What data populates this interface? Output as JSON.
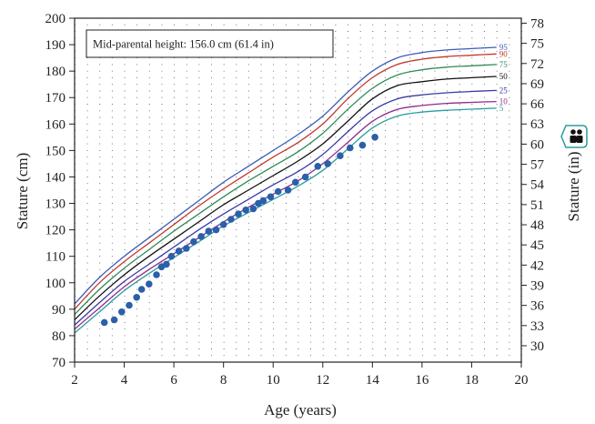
{
  "chart_data": {
    "type": "line",
    "title": "",
    "annotation": "Mid-parental height: 156.0 cm (61.4 in)",
    "xlabel": "Age (years)",
    "ylabel": "Stature (cm)",
    "y2label": "Stature (in)",
    "xlim": [
      2,
      20
    ],
    "ylim": [
      70,
      200
    ],
    "y2lim_in": [
      27.56,
      78.74
    ],
    "x_ticks": [
      2,
      4,
      6,
      8,
      10,
      12,
      14,
      16,
      18,
      20
    ],
    "y_ticks": [
      70,
      80,
      90,
      100,
      110,
      120,
      130,
      140,
      150,
      160,
      170,
      180,
      190,
      200
    ],
    "y2_ticks": [
      30,
      33,
      36,
      39,
      42,
      45,
      48,
      51,
      54,
      57,
      60,
      63,
      66,
      69,
      72,
      75,
      78
    ],
    "grid": "dotted",
    "x": [
      2,
      3,
      4,
      5,
      6,
      7,
      8,
      9,
      10,
      11,
      12,
      13,
      14,
      15,
      16,
      17,
      18,
      19
    ],
    "series": [
      {
        "name": "95",
        "color": "#3a5cb8",
        "values": [
          92,
          102,
          110,
          117,
          124,
          131,
          138,
          144,
          150,
          156,
          163,
          172,
          180,
          185,
          187,
          188,
          188.5,
          189
        ]
      },
      {
        "name": "90",
        "color": "#c0392b",
        "values": [
          90,
          100,
          108,
          115,
          122,
          129,
          135.5,
          141.5,
          147.5,
          153,
          160,
          169.5,
          177.5,
          182.5,
          184.5,
          185.5,
          186,
          186.5
        ]
      },
      {
        "name": "75",
        "color": "#2e8b57",
        "values": [
          88,
          97.5,
          105.5,
          112.5,
          119.5,
          126,
          132.5,
          138.5,
          144,
          149.5,
          156.5,
          165.5,
          173.5,
          178.5,
          180.5,
          181.5,
          182,
          182.5
        ]
      },
      {
        "name": "50",
        "color": "#111111",
        "values": [
          86,
          95,
          103,
          110,
          116.5,
          123,
          129.5,
          135,
          140.5,
          146,
          152.5,
          161,
          169.5,
          174.5,
          176,
          177,
          177.5,
          178
        ]
      },
      {
        "name": "25",
        "color": "#3a3aa8",
        "values": [
          84,
          92.5,
          100.5,
          107,
          113.5,
          120,
          126,
          131.5,
          137,
          142,
          148.5,
          157,
          165,
          169.5,
          171,
          171.8,
          172.3,
          172.7
        ]
      },
      {
        "name": "10",
        "color": "#8e2b8e",
        "values": [
          82.5,
          90.5,
          98.5,
          105,
          111,
          117,
          123,
          128.5,
          133.5,
          138.5,
          145,
          153,
          161,
          165.5,
          167,
          167.8,
          168.2,
          168.5
        ]
      },
      {
        "name": "5",
        "color": "#2a9d9d",
        "values": [
          81,
          89,
          97,
          103.5,
          109.5,
          115.5,
          121.5,
          126.5,
          131.5,
          136.5,
          142.5,
          150.5,
          158.5,
          163,
          164.5,
          165.2,
          165.6,
          166
        ]
      }
    ],
    "points": {
      "color": "#2b5faa",
      "x": [
        3.2,
        3.6,
        3.9,
        4.2,
        4.5,
        4.7,
        5.0,
        5.3,
        5.5,
        5.7,
        5.9,
        6.2,
        6.5,
        6.8,
        7.1,
        7.4,
        7.7,
        8.0,
        8.3,
        8.6,
        8.9,
        9.2,
        9.4,
        9.6,
        9.9,
        10.2,
        10.6,
        10.9,
        11.3,
        11.8,
        12.2,
        12.7,
        13.1,
        13.6,
        14.1
      ],
      "y": [
        85,
        86,
        89,
        91.5,
        94.5,
        97.5,
        99.5,
        103,
        106,
        107,
        110,
        112,
        113,
        115.5,
        117.5,
        119.5,
        120,
        122,
        124,
        126,
        127.5,
        128,
        130,
        131,
        132.5,
        134.5,
        135,
        138,
        140,
        144,
        145,
        148,
        151,
        152,
        155
      ]
    },
    "legend": "none",
    "icon": "gender-icon"
  }
}
